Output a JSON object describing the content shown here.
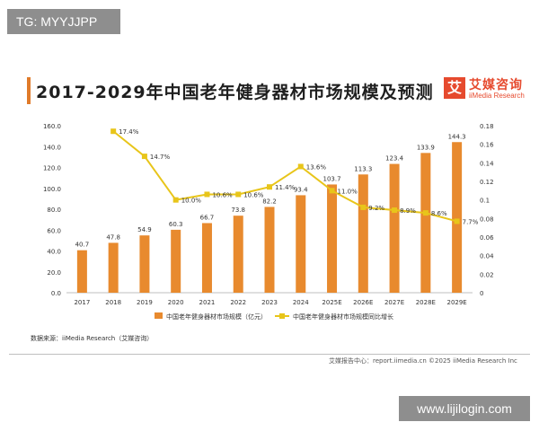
{
  "watermark_top": "TG: MYYJJPP",
  "watermark_bottom": "www.lijilogin.com",
  "title": "2017-2029年中国老年健身器材市场规模及预测",
  "logo": {
    "box_char": "艾",
    "name": "艾媒咨询",
    "english": "iiMedia Research"
  },
  "source": "数据来源：iiMedia Research（艾媒咨询）",
  "footer": "艾媒报告中心：report.iimedia.cn ©2025 iiMedia Research Inc",
  "colors": {
    "bar": "#e88a2e",
    "line": "#e8c51a",
    "title_accent": "#e07b2a",
    "logo": "#e64a2e"
  },
  "chart_data": {
    "type": "bar",
    "categories": [
      "2017",
      "2018",
      "2019",
      "2020",
      "2021",
      "2022",
      "2023",
      "2024",
      "2025E",
      "2026E",
      "2027E",
      "2028E",
      "2029E"
    ],
    "series": [
      {
        "name": "中国老年健身器材市场规模（亿元）",
        "type": "bar",
        "axis": "left",
        "values": [
          40.7,
          47.8,
          54.9,
          60.3,
          66.7,
          73.8,
          82.2,
          93.4,
          103.7,
          113.3,
          123.4,
          133.9,
          144.3
        ],
        "labels": [
          "40.7",
          "47.8",
          "54.9",
          "60.3",
          "66.7",
          "73.8",
          "82.2",
          "93.4",
          "103.7",
          "113.3",
          "123.4",
          "133.9",
          "144.3"
        ]
      },
      {
        "name": "中国老年健身器材市场规模同比增长",
        "type": "line",
        "axis": "right",
        "values": [
          null,
          0.174,
          0.147,
          0.1,
          0.106,
          0.106,
          0.114,
          0.136,
          0.11,
          0.092,
          0.089,
          0.086,
          0.077
        ],
        "labels": [
          "",
          "17.4%",
          "14.7%",
          "10.0%",
          "10.6%",
          "10.6%",
          "11.4%",
          "13.6%",
          "11.0%",
          "9.2%",
          "8.9%",
          "8.6%",
          "7.7%"
        ]
      }
    ],
    "y_left": {
      "ylim": [
        0,
        160
      ],
      "ticks": [
        "0.0",
        "20.0",
        "40.0",
        "60.0",
        "80.0",
        "100.0",
        "120.0",
        "140.0",
        "160.0"
      ]
    },
    "y_right": {
      "ylim": [
        0,
        0.18
      ],
      "ticks": [
        "0",
        "0.02",
        "0.04",
        "0.06",
        "0.08",
        "0.1",
        "0.12",
        "0.14",
        "0.16",
        "0.18"
      ]
    },
    "legend": "bottom-center",
    "grid": false
  }
}
